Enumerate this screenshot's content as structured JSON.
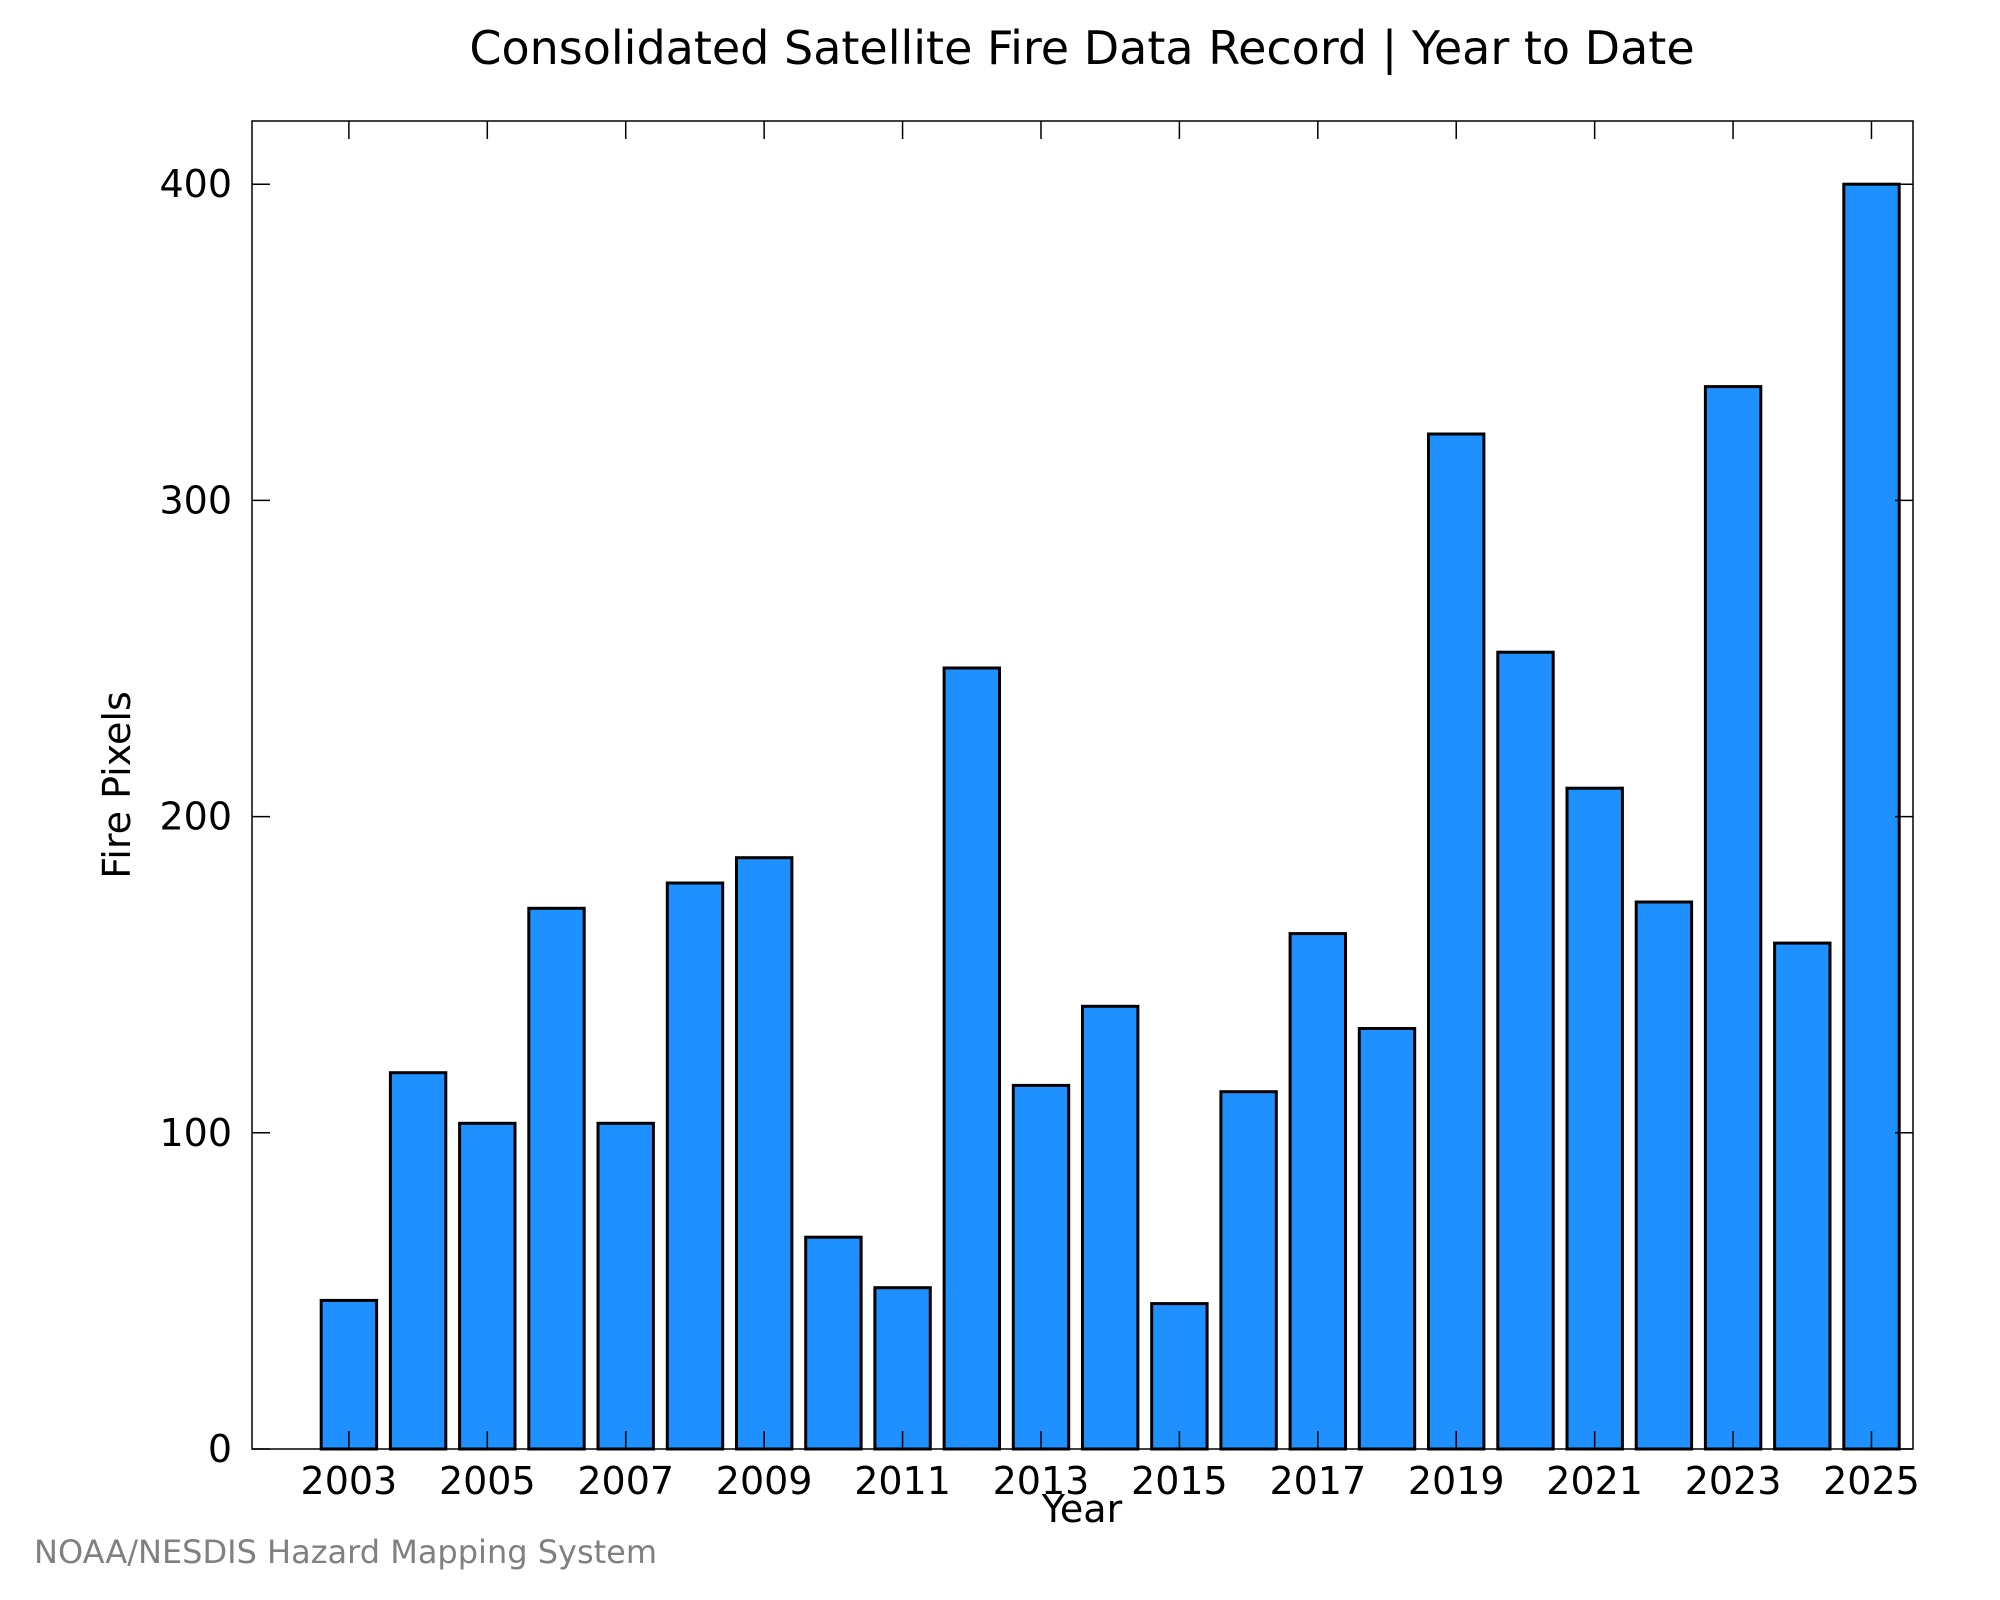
{
  "chart_data": {
    "type": "bar",
    "title": "Consolidated Satellite Fire Data Record | Year to Date",
    "xlabel": "Year",
    "ylabel": "Fire Pixels",
    "credit": "NOAA/NESDIS Hazard Mapping System",
    "categories": [
      2003,
      2004,
      2005,
      2006,
      2007,
      2008,
      2009,
      2010,
      2011,
      2012,
      2013,
      2014,
      2015,
      2016,
      2017,
      2018,
      2019,
      2020,
      2021,
      2022,
      2023,
      2024,
      2025
    ],
    "values": [
      47,
      119,
      103,
      171,
      103,
      179,
      187,
      67,
      51,
      247,
      115,
      140,
      46,
      113,
      163,
      133,
      321,
      252,
      209,
      173,
      336,
      160,
      400
    ],
    "xticks": [
      "2003",
      "2005",
      "2007",
      "2009",
      "2011",
      "2013",
      "2015",
      "2017",
      "2019",
      "2021",
      "2023",
      "2025"
    ],
    "yticks": [
      "0",
      "100",
      "200",
      "300",
      "400"
    ],
    "ylim": [
      0,
      420
    ],
    "xlim": [
      2001.6,
      2025.6
    ],
    "bar_color": "#1e90ff",
    "edge_color": "#000000",
    "grid": false,
    "legend": false
  }
}
